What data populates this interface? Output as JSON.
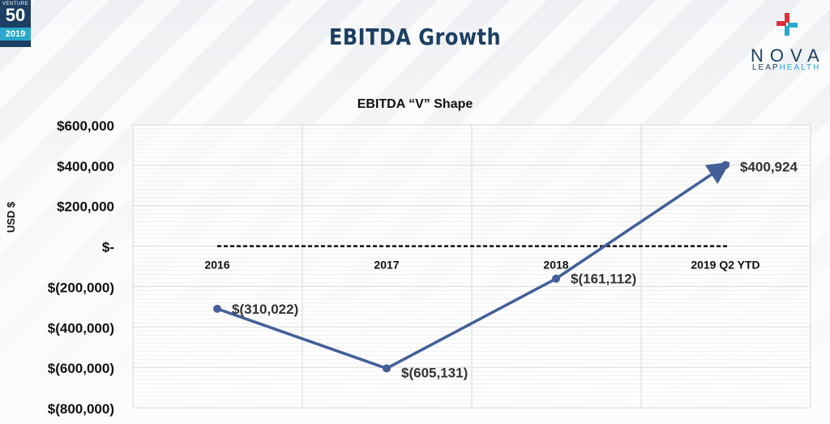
{
  "badge": {
    "top": "VENTURE",
    "number": "50",
    "year": "2019"
  },
  "title": "EBITDA Growth",
  "logo": {
    "word": "NOVA",
    "sub_leap": "LEAP",
    "sub_health": "HEALTH"
  },
  "colors": {
    "navy": "#1c3f63",
    "series": "#435f99",
    "logo_red": "#d7303a",
    "logo_teal": "#2aa8c9"
  },
  "chart_data": {
    "type": "line",
    "title": "EBITDA “V” Shape",
    "ylabel": "USD $",
    "xlabel": "",
    "categories": [
      "2016",
      "2017",
      "2018",
      "2019 Q2 YTD"
    ],
    "series": [
      {
        "values": [
          -310022,
          -605131,
          -161112,
          400924
        ]
      }
    ],
    "data_labels": [
      "$(310,022)",
      "$(605,131)",
      "$(161,112)",
      "$400,924"
    ],
    "ylim": [
      -800000,
      600000
    ],
    "yticks": [
      600000,
      400000,
      200000,
      0,
      -200000,
      -400000,
      -600000,
      -800000
    ],
    "ytick_labels": [
      "$600,000",
      "$400,000",
      "$200,000",
      "$-",
      "$(200,000)",
      "$(400,000)",
      "$(600,000)",
      "$(800,000)"
    ],
    "zero_line": "dashed",
    "grid": true,
    "legend": "none"
  }
}
